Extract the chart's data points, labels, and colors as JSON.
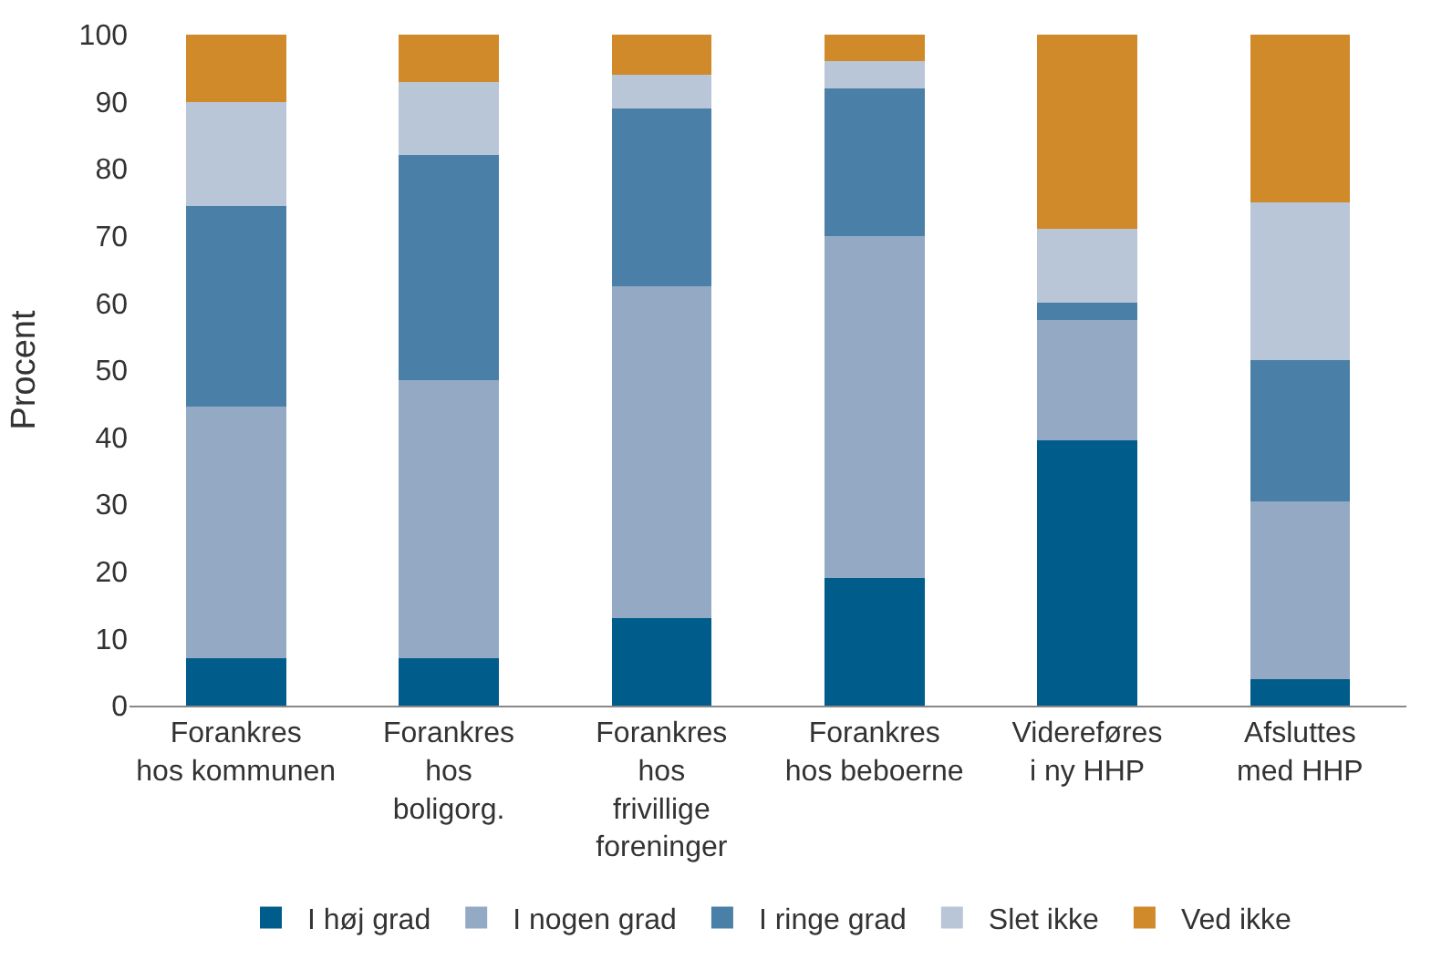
{
  "chart_data": {
    "type": "bar",
    "stacked": true,
    "ylabel": "Procent",
    "categories": [
      "Forankres hos kommunen",
      "Forankres hos boligorg.",
      "Forankres hos frivillige foreninger",
      "Forankres hos beboerne",
      "Videreføres i ny HHP",
      "Afsluttes med HHP"
    ],
    "series": [
      {
        "name": "I høj grad",
        "color": "#005c8a",
        "values": [
          7,
          7,
          13,
          19,
          39.5,
          4
        ]
      },
      {
        "name": "I nogen grad",
        "color": "#94aac4",
        "values": [
          37.5,
          41.5,
          49.5,
          51,
          18,
          26.5
        ]
      },
      {
        "name": "I ringe grad",
        "color": "#4a80a8",
        "values": [
          30,
          33.5,
          26.5,
          22,
          2.5,
          21
        ]
      },
      {
        "name": "Slet ikke",
        "color": "#b9c6d8",
        "values": [
          15.5,
          11,
          5,
          4,
          11,
          23.5
        ]
      },
      {
        "name": "Ved ikke",
        "color": "#d08a2a",
        "values": [
          10,
          7,
          6,
          4,
          29,
          25
        ]
      }
    ],
    "ylim": [
      0,
      100
    ],
    "yticks": [
      0,
      10,
      20,
      30,
      40,
      50,
      60,
      70,
      80,
      90,
      100
    ],
    "grid": false,
    "legend": "bottom"
  }
}
